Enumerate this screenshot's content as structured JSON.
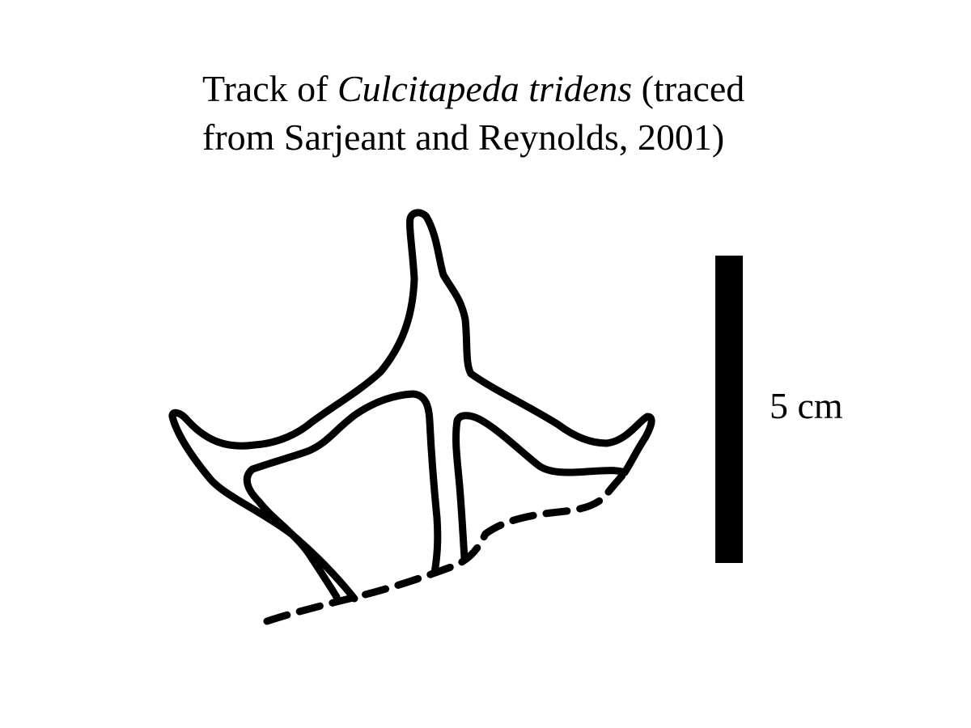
{
  "caption": {
    "line1_prefix": "Track of ",
    "line1_italic": "Culcitapeda tridens",
    "line1_suffix": " (traced",
    "line2": "from Sarjeant and Reynolds, 2001)"
  },
  "scale": {
    "label": "5 cm",
    "color": "#000000"
  },
  "drawing": {
    "stroke_color": "#000000",
    "background": "#ffffff"
  }
}
